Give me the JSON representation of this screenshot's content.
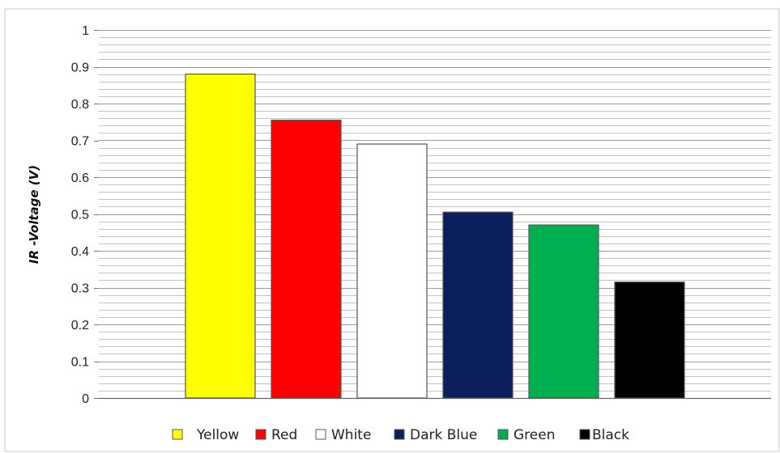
{
  "chart_data": {
    "type": "bar",
    "title": "",
    "xlabel": "",
    "ylabel": "IR -Voltage (V)",
    "ylim": [
      0,
      1
    ],
    "y_ticks": [
      "0",
      "0.1",
      "0.2",
      "0.3",
      "0.4",
      "0.5",
      "0.6",
      "0.7",
      "0.8",
      "0.9",
      "1"
    ],
    "grid": true,
    "legend_position": "bottom",
    "series": [
      {
        "name": "Yellow",
        "value": 0.88,
        "color": "#FFFF00"
      },
      {
        "name": "Red",
        "value": 0.755,
        "color": "#FF0000"
      },
      {
        "name": "White",
        "value": 0.69,
        "color": "#FFFFFF"
      },
      {
        "name": "Dark Blue",
        "value": 0.505,
        "color": "#0A1F5C"
      },
      {
        "name": "Green",
        "value": 0.47,
        "color": "#00B050"
      },
      {
        "name": "Black",
        "value": 0.315,
        "color": "#000000"
      }
    ]
  }
}
